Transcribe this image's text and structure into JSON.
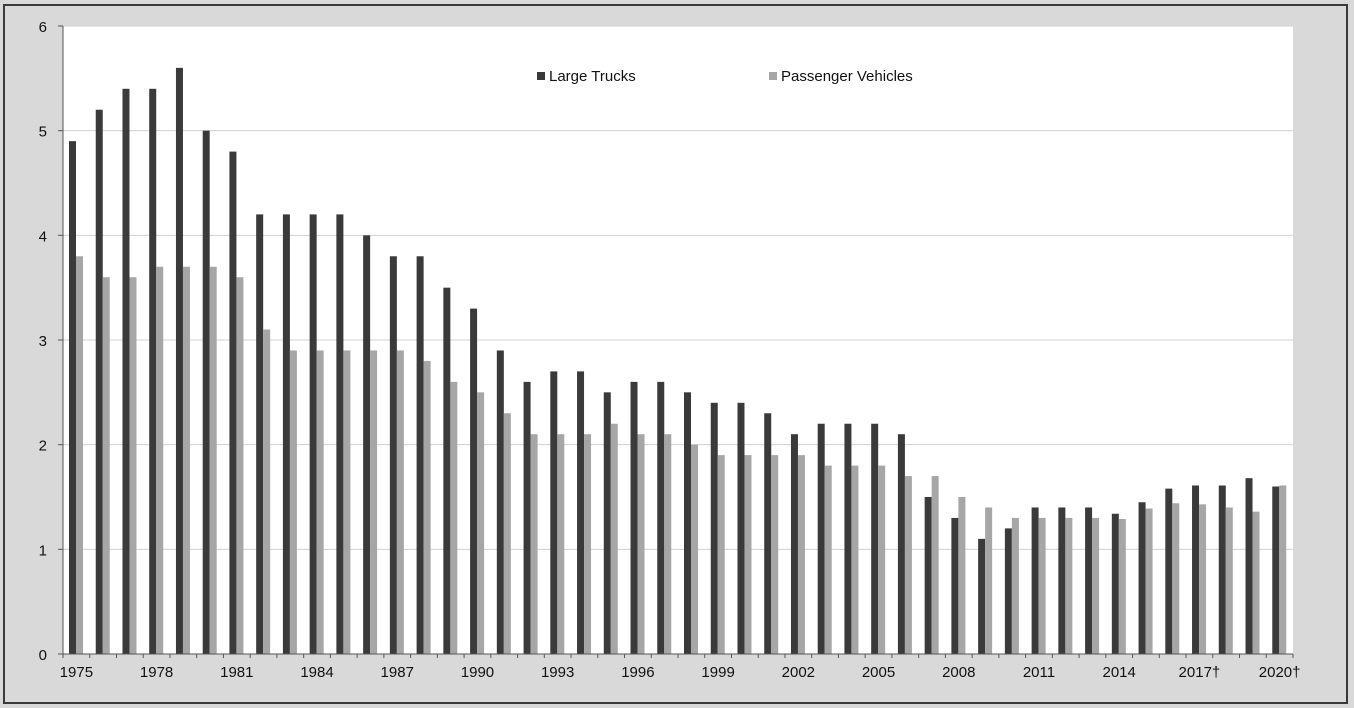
{
  "chart_data": {
    "type": "bar",
    "title": "",
    "xlabel": "",
    "ylabel": "",
    "ylim": [
      0,
      6
    ],
    "yticks": [
      0,
      1,
      2,
      3,
      4,
      5,
      6
    ],
    "grid": true,
    "legend_position": "top-center",
    "categories": [
      "1975",
      "1976",
      "1977",
      "1978",
      "1979",
      "1980",
      "1981",
      "1982",
      "1983",
      "1984",
      "1985",
      "1986",
      "1987",
      "1988",
      "1989",
      "1990",
      "1991",
      "1992",
      "1993",
      "1994",
      "1995",
      "1996",
      "1997",
      "1998",
      "1999",
      "2000",
      "2001",
      "2002",
      "2003",
      "2004",
      "2005",
      "2006",
      "2007",
      "2008",
      "2009",
      "2010",
      "2011",
      "2012",
      "2013",
      "2014",
      "2015",
      "2016",
      "2017†",
      "2018",
      "2019",
      "2020†"
    ],
    "x_tick_labels": [
      "1975",
      "1978",
      "1981",
      "1984",
      "1987",
      "1990",
      "1993",
      "1996",
      "1999",
      "2002",
      "2005",
      "2008",
      "2011",
      "2014",
      "2017†",
      "2020†"
    ],
    "series": [
      {
        "name": "Large Trucks",
        "color": "#3a3a3a",
        "values": [
          4.9,
          5.2,
          5.4,
          5.4,
          5.6,
          5.0,
          4.8,
          4.2,
          4.2,
          4.2,
          4.2,
          4.0,
          3.8,
          3.8,
          3.5,
          3.3,
          2.9,
          2.6,
          2.7,
          2.7,
          2.5,
          2.6,
          2.6,
          2.5,
          2.4,
          2.4,
          2.3,
          2.1,
          2.2,
          2.2,
          2.2,
          2.1,
          1.5,
          1.3,
          1.1,
          1.2,
          1.4,
          1.4,
          1.4,
          1.34,
          1.45,
          1.58,
          1.61,
          1.61,
          1.68,
          1.6
        ]
      },
      {
        "name": "Passenger Vehicles",
        "color": "#a6a6a6",
        "values": [
          3.8,
          3.6,
          3.6,
          3.7,
          3.7,
          3.7,
          3.6,
          3.1,
          2.9,
          2.9,
          2.9,
          2.9,
          2.9,
          2.8,
          2.6,
          2.5,
          2.3,
          2.1,
          2.1,
          2.1,
          2.2,
          2.1,
          2.1,
          2.0,
          1.9,
          1.9,
          1.9,
          1.9,
          1.8,
          1.8,
          1.8,
          1.7,
          1.7,
          1.5,
          1.4,
          1.3,
          1.3,
          1.3,
          1.3,
          1.29,
          1.39,
          1.44,
          1.43,
          1.4,
          1.36,
          1.61
        ]
      }
    ]
  }
}
